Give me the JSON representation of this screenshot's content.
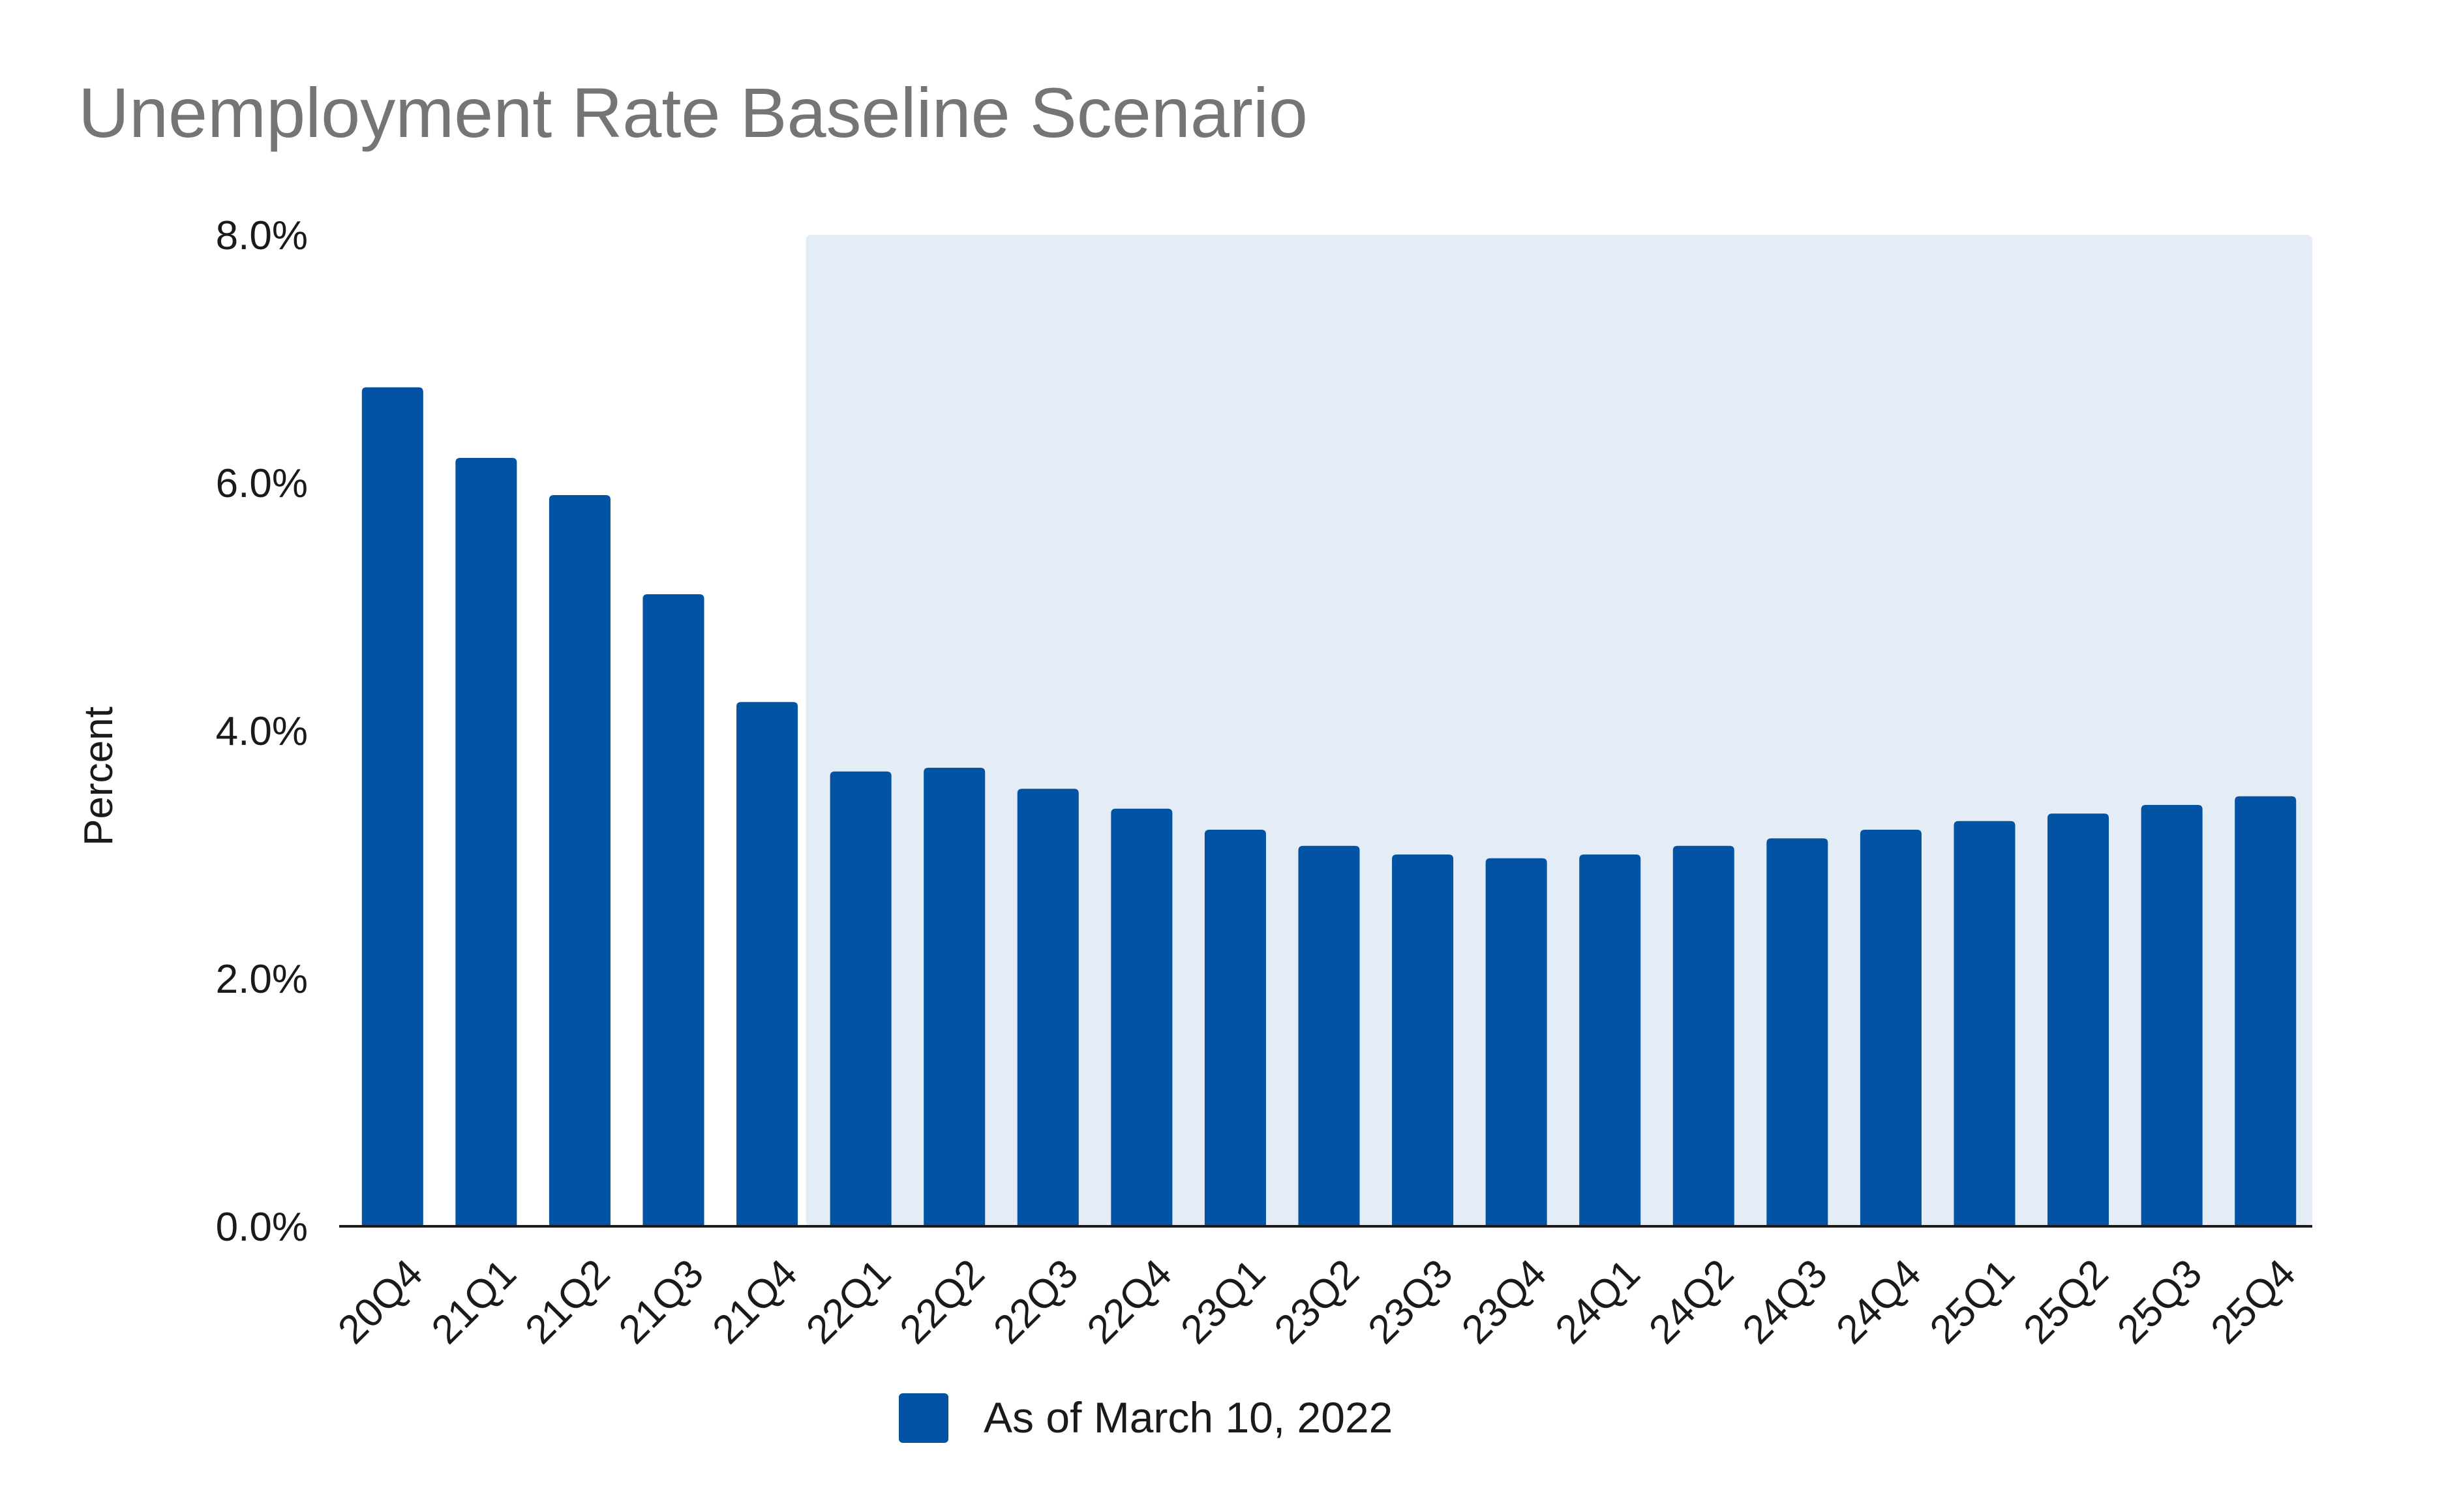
{
  "chart_data": {
    "type": "bar",
    "title": "Unemployment Rate Baseline Scenario",
    "xlabel": "",
    "ylabel": "Percent",
    "ylim": [
      0,
      8
    ],
    "yticks": [
      "0.0%",
      "2.0%",
      "4.0%",
      "6.0%",
      "8.0%"
    ],
    "ytick_values": [
      0,
      2,
      4,
      6,
      8
    ],
    "categories": [
      "20Q4",
      "21Q1",
      "21Q2",
      "21Q3",
      "21Q4",
      "22Q1",
      "22Q2",
      "22Q3",
      "22Q4",
      "23Q1",
      "23Q2",
      "23Q3",
      "23Q4",
      "24Q1",
      "24Q2",
      "24Q3",
      "24Q4",
      "25Q1",
      "25Q2",
      "25Q3",
      "25Q4"
    ],
    "series": [
      {
        "name": "As of March 10, 2022",
        "color": "#0353a4",
        "values": [
          6.77,
          6.2,
          5.9,
          5.1,
          4.23,
          3.67,
          3.7,
          3.53,
          3.37,
          3.2,
          3.07,
          3.0,
          2.97,
          3.0,
          3.07,
          3.13,
          3.2,
          3.27,
          3.33,
          3.4,
          3.47
        ]
      }
    ],
    "projection_shading": {
      "start_category": "22Q1",
      "end_category": "25Q4",
      "color": "#e4ecf5"
    },
    "grid": false,
    "legend_position": "bottom-center"
  }
}
